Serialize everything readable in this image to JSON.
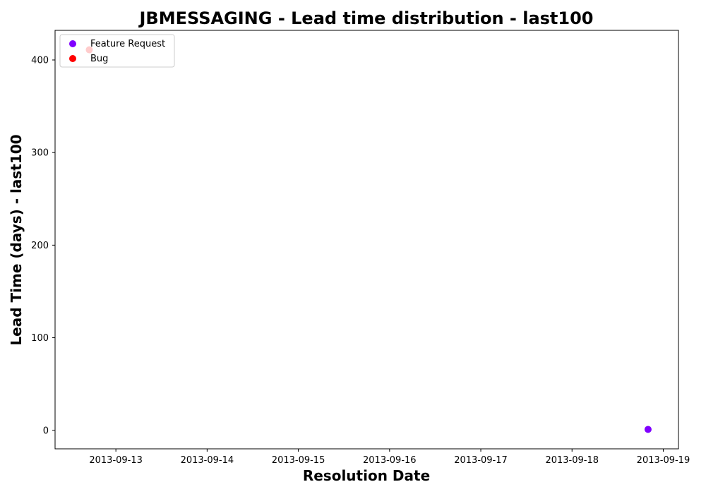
{
  "chart_data": {
    "type": "scatter",
    "title": "JBMESSAGING - Lead time distribution - last100",
    "xlabel": "Resolution Date",
    "ylabel": "Lead Time (days) - last100",
    "x_type": "date",
    "xlim": [
      "2013-09-12T08:00",
      "2013-09-19T04:00"
    ],
    "ylim": [
      -20,
      432
    ],
    "x_ticks": [
      "2013-09-13",
      "2013-09-14",
      "2013-09-15",
      "2013-09-16",
      "2013-09-17",
      "2013-09-18",
      "2013-09-19"
    ],
    "y_ticks": [
      0,
      100,
      200,
      300,
      400
    ],
    "grid": false,
    "legend_position": "top-left",
    "series": [
      {
        "name": "Feature Request",
        "color": "#8000ff",
        "points": [
          {
            "x": "2013-09-18T20:00",
            "y": 1
          }
        ]
      },
      {
        "name": "Bug",
        "color": "#ff0000",
        "points": [
          {
            "x": "2013-09-12T17:00",
            "y": 411
          }
        ]
      }
    ]
  }
}
